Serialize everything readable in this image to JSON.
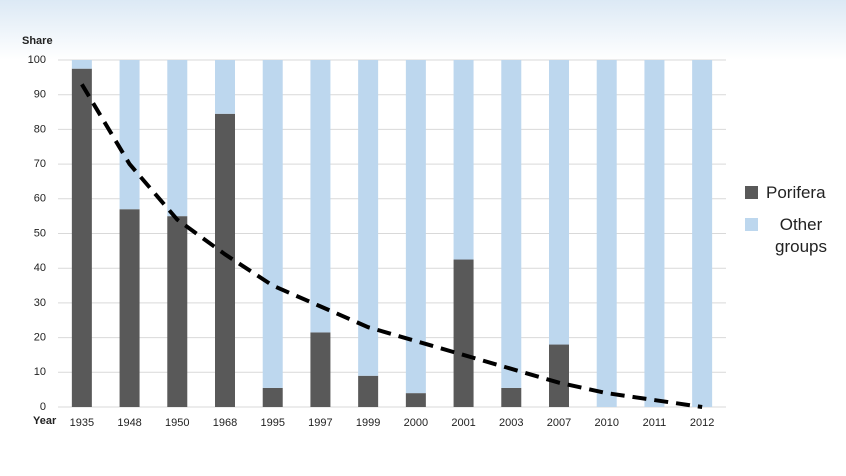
{
  "chart_data": {
    "type": "bar",
    "stacked": true,
    "y_label": "Share",
    "x_label": "Year",
    "categories": [
      "1935",
      "1948",
      "1950",
      "1968",
      "1995",
      "1997",
      "1999",
      "2000",
      "2001",
      "2003",
      "2007",
      "2010",
      "2011",
      "2012"
    ],
    "series": [
      {
        "name": "Porifera",
        "color": "#595959",
        "values": [
          97.5,
          57,
          55,
          84.5,
          5.5,
          21.5,
          9,
          4,
          42.5,
          5.5,
          18,
          0,
          0,
          0
        ]
      },
      {
        "name": "Other groups",
        "color": "#bdd7ee",
        "values": [
          2.5,
          43,
          45,
          15.5,
          94.5,
          78.5,
          91,
          96,
          57.5,
          94.5,
          82,
          100,
          100,
          100
        ]
      }
    ],
    "trend": {
      "color": "#000000",
      "values": [
        93,
        70,
        54,
        44,
        35,
        29,
        23,
        19,
        15,
        11,
        7,
        4,
        2,
        0
      ]
    },
    "ylim": [
      0,
      100
    ],
    "yticks": [
      0,
      10,
      20,
      30,
      40,
      50,
      60,
      70,
      80,
      90,
      100
    ],
    "grid": true
  }
}
